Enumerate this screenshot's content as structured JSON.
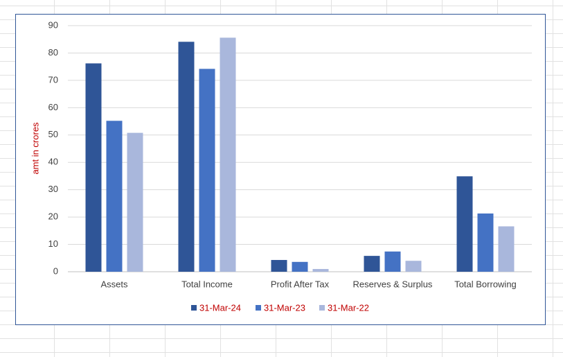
{
  "chart_data": {
    "type": "bar",
    "y_label": "amt in crores",
    "categories": [
      "Assets",
      "Total Income",
      "Profit After Tax",
      "Reserves & Surplus",
      "Total Borrowing"
    ],
    "series": [
      {
        "name": "31-Mar-24",
        "color": "#2f5597",
        "values": [
          76.2,
          84.1,
          4.3,
          5.8,
          34.9
        ]
      },
      {
        "name": "31-Mar-23",
        "color": "#4472c4",
        "values": [
          55.2,
          74.2,
          3.6,
          7.4,
          21.3
        ]
      },
      {
        "name": "31-Mar-22",
        "color": "#a9b7dc",
        "values": [
          50.8,
          85.6,
          1.0,
          4.0,
          16.6
        ]
      }
    ],
    "ylim": [
      0,
      90
    ],
    "yticks": [
      0,
      10,
      20,
      30,
      40,
      50,
      60,
      70,
      80,
      90
    ],
    "grid": true,
    "legend_position": "bottom",
    "label_color": "#c00000"
  }
}
